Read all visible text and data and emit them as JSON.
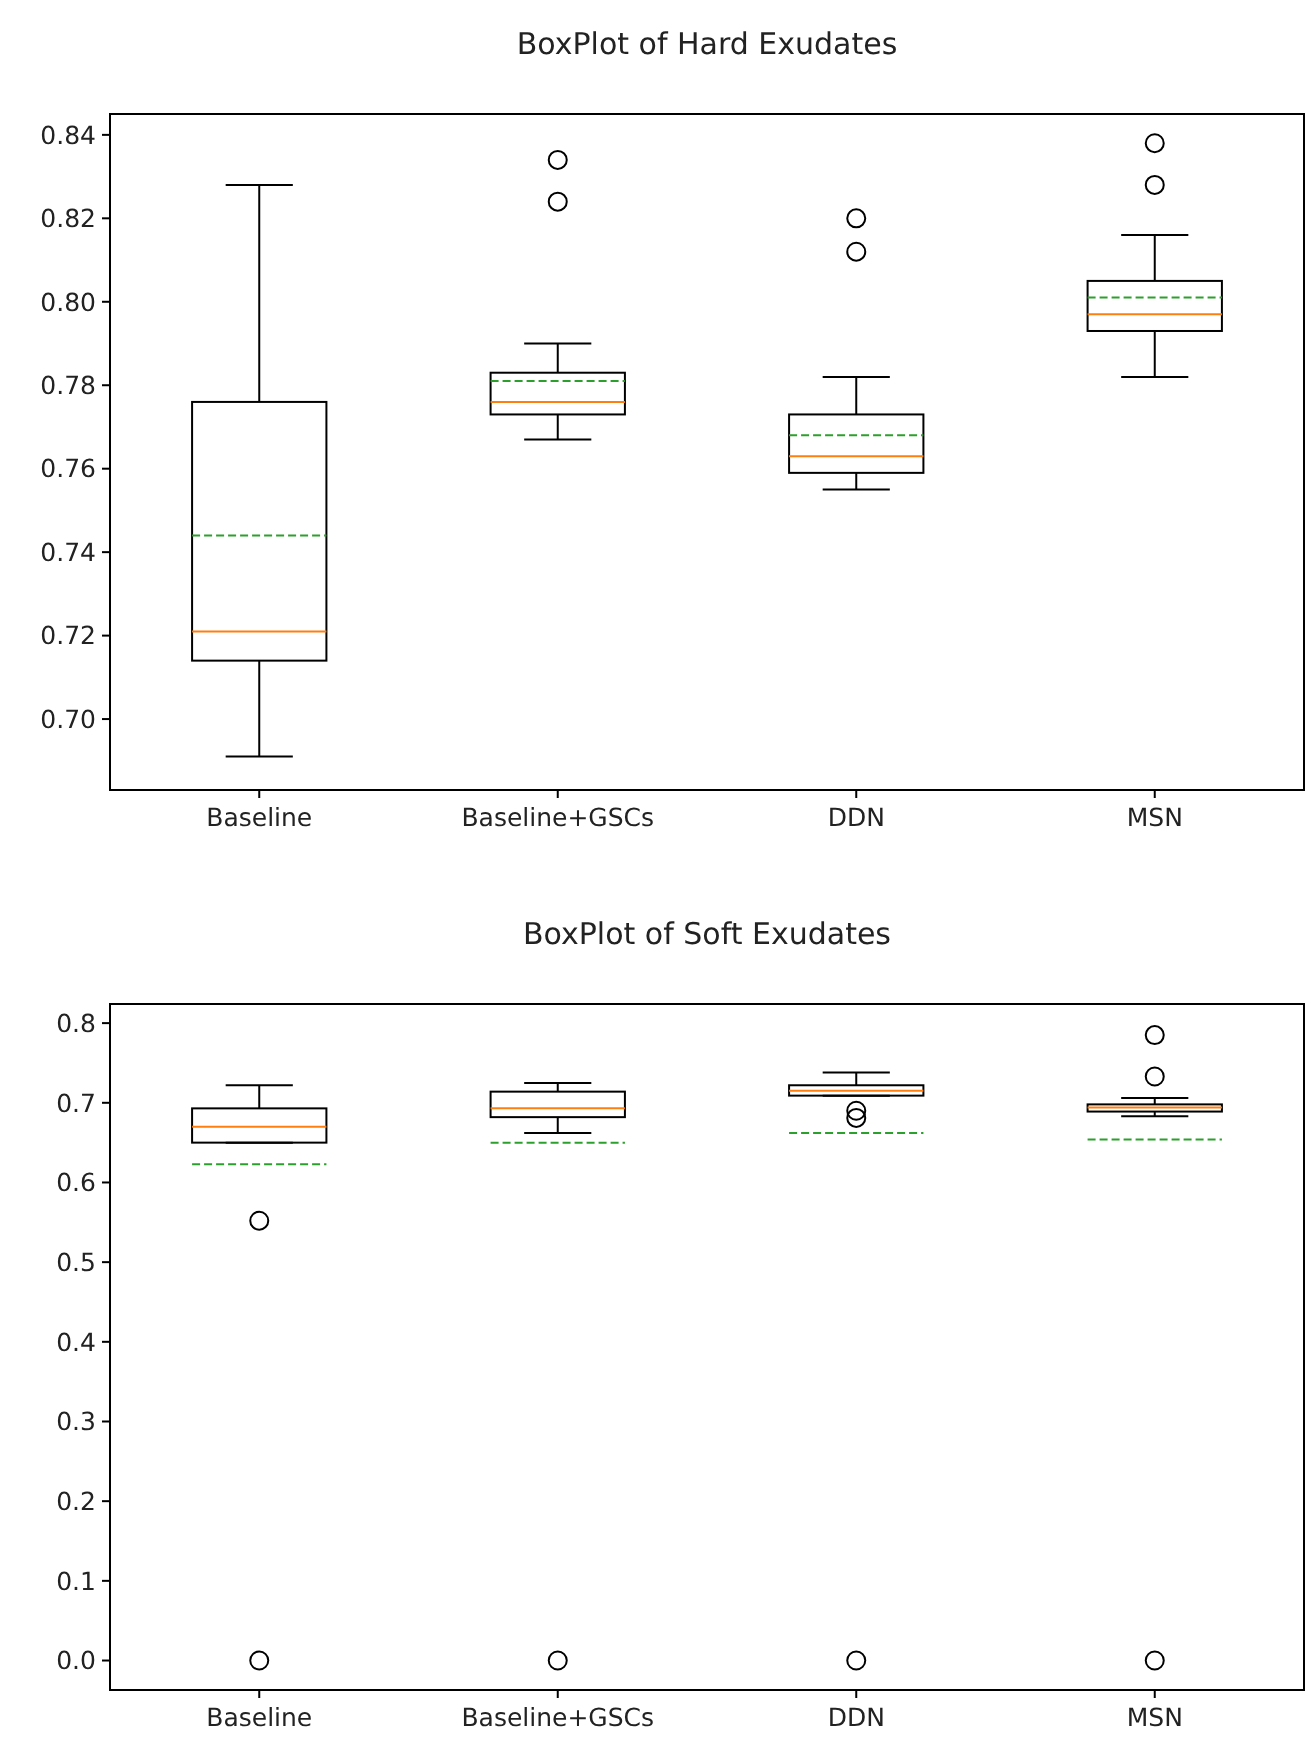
{
  "chart_data": [
    {
      "type": "box",
      "title": "BoxPlot of Hard Exudates",
      "categories": [
        "Baseline",
        "Baseline+GSCs",
        "DDN",
        "MSN"
      ],
      "ylim": [
        0.683,
        0.845
      ],
      "yticks": [
        {
          "value": 0.7,
          "label": "0.70"
        },
        {
          "value": 0.72,
          "label": "0.72"
        },
        {
          "value": 0.74,
          "label": "0.74"
        },
        {
          "value": 0.76,
          "label": "0.76"
        },
        {
          "value": 0.78,
          "label": "0.78"
        },
        {
          "value": 0.8,
          "label": "0.80"
        },
        {
          "value": 0.82,
          "label": "0.82"
        },
        {
          "value": 0.84,
          "label": "0.84"
        }
      ],
      "grid": false,
      "marker": "circle",
      "boxes": [
        {
          "low": 0.691,
          "q1": 0.714,
          "median": 0.721,
          "q3": 0.776,
          "high": 0.828,
          "mean": 0.744
        },
        {
          "low": 0.767,
          "q1": 0.773,
          "median": 0.776,
          "q3": 0.783,
          "high": 0.79,
          "mean": 0.781,
          "outliers": [
            0.834,
            0.824
          ]
        },
        {
          "low": 0.755,
          "q1": 0.759,
          "median": 0.763,
          "q3": 0.773,
          "high": 0.782,
          "mean": 0.768,
          "outliers": [
            0.82,
            0.812
          ]
        },
        {
          "low": 0.782,
          "q1": 0.793,
          "median": 0.797,
          "q3": 0.805,
          "high": 0.816,
          "mean": 0.801,
          "outliers": [
            0.838,
            0.828
          ]
        }
      ]
    },
    {
      "type": "box",
      "title": "BoxPlot of Soft Exudates",
      "categories": [
        "Baseline",
        "Baseline+GSCs",
        "DDN",
        "MSN"
      ],
      "ylim": [
        -0.037,
        0.824
      ],
      "yticks": [
        {
          "value": 0.0,
          "label": "0.0"
        },
        0.1,
        0.2,
        0.3,
        0.4,
        0.5,
        0.6,
        0.7,
        0.8
      ],
      "grid": false,
      "marker": "circle",
      "boxes": [
        {
          "low": 0.65,
          "q1": 0.65,
          "median": 0.67,
          "q3": 0.693,
          "high": 0.722,
          "mean": 0.623,
          "outliers": [
            0.552,
            0.0
          ]
        },
        {
          "low": 0.662,
          "q1": 0.682,
          "median": 0.693,
          "q3": 0.714,
          "high": 0.725,
          "mean": 0.65,
          "outliers": [
            0.0
          ]
        },
        {
          "low": 0.709,
          "q1": 0.709,
          "median": 0.715,
          "q3": 0.722,
          "high": 0.738,
          "mean": 0.662,
          "outliers": [
            0.69,
            0.681,
            0.0
          ]
        },
        {
          "low": 0.683,
          "q1": 0.689,
          "median": 0.694,
          "q3": 0.698,
          "high": 0.706,
          "mean": 0.654,
          "outliers": [
            0.785,
            0.733,
            0.0
          ]
        }
      ]
    }
  ]
}
